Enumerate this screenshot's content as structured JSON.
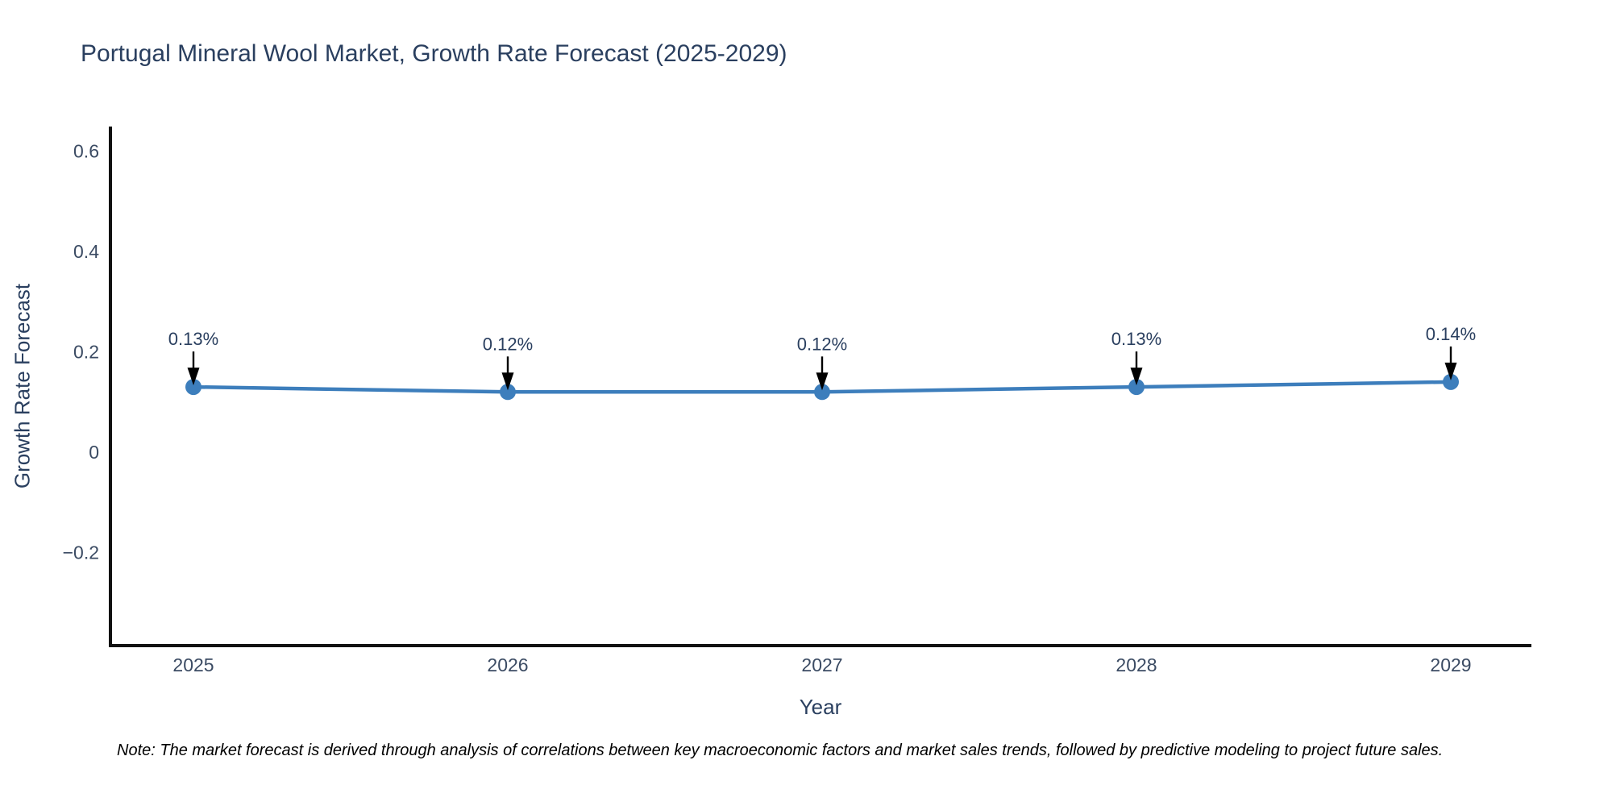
{
  "chart": {
    "title": "Portugal Mineral Wool Market, Growth Rate Forecast (2025-2029)",
    "xlabel": "Year",
    "ylabel": "Growth Rate Forecast",
    "note": "Note: The market forecast is derived through analysis of correlations between key macroeconomic factors and market sales trends, followed by predictive modeling to project future sales."
  },
  "chart_data": {
    "type": "line",
    "title": "Portugal Mineral Wool Market, Growth Rate Forecast (2025-2029)",
    "xlabel": "Year",
    "ylabel": "Growth Rate Forecast",
    "x": [
      2025,
      2026,
      2027,
      2028,
      2029
    ],
    "values": [
      0.13,
      0.12,
      0.12,
      0.13,
      0.14
    ],
    "point_labels": [
      "0.13%",
      "0.12%",
      "0.12%",
      "0.13%",
      "0.14%"
    ],
    "unit": "%",
    "yticks": [
      0.6,
      0.4,
      0.2,
      0,
      -0.2
    ],
    "ytick_labels": [
      "0.6",
      "0.4",
      "0.2",
      "0",
      "−0.2"
    ],
    "xtick_labels": [
      "2025",
      "2026",
      "2027",
      "2028",
      "2029"
    ],
    "ylim": [
      -0.39,
      0.66
    ],
    "grid": false,
    "legend_position": "none",
    "line_color": "#3d7ebc",
    "marker_color": "#3d7ebc",
    "spine_color": "#111111",
    "annotation_arrow_color": "#000000",
    "title_color": "#2a3f5f",
    "axis_text_color": "#3b4b63"
  }
}
